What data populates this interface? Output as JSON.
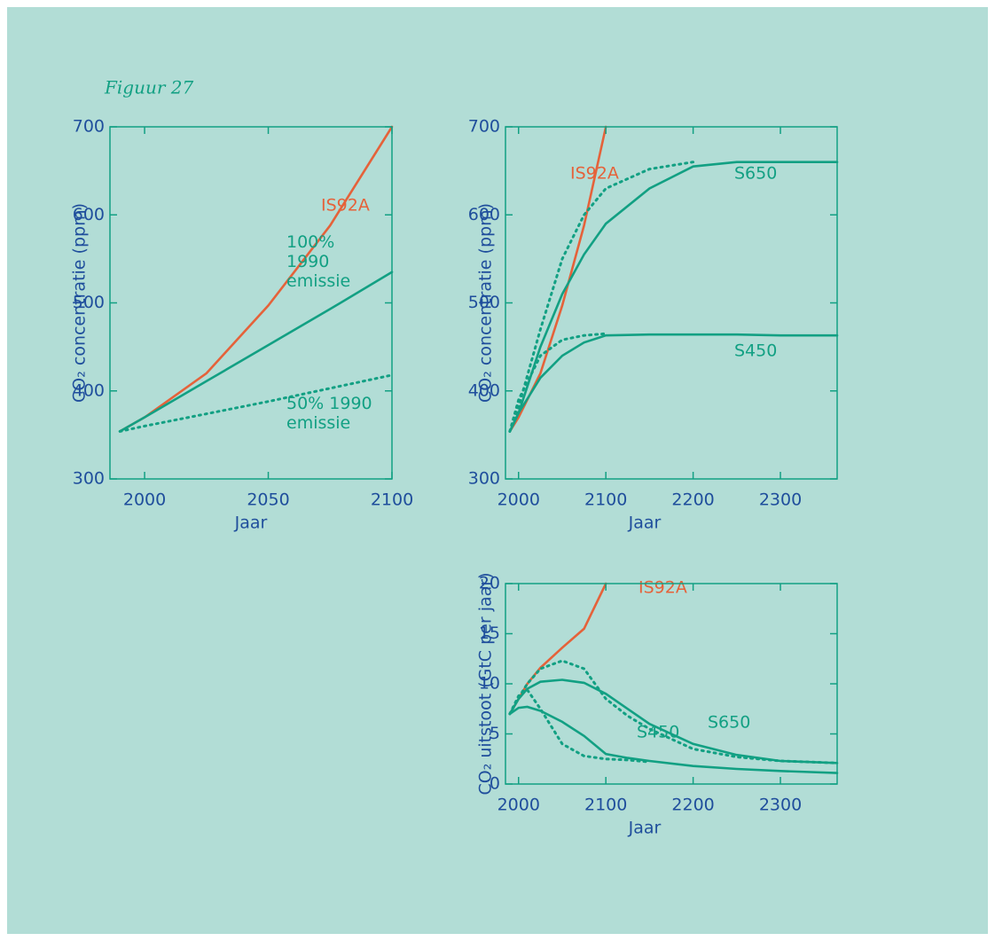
{
  "figure_label": "Figuur 27",
  "chart_data": [
    {
      "type": "line",
      "xlabel": "Jaar",
      "ylabel": "CO₂ concentratie (ppm)",
      "x": [
        1990,
        2000,
        2025,
        2050,
        2075,
        2100
      ],
      "xlim": [
        1986,
        2100
      ],
      "xticks": [
        2000,
        2050,
        2100
      ],
      "ylim": [
        300,
        700
      ],
      "yticks": [
        300,
        400,
        500,
        600,
        700
      ],
      "series": [
        {
          "name": "IS92A",
          "color": "#e5623a",
          "style": "solid",
          "values": [
            354,
            370,
            420,
            497,
            588,
            700
          ]
        },
        {
          "name": "100% 1990 emissie",
          "color": "#12a083",
          "style": "solid",
          "values": [
            354,
            370,
            411,
            452,
            493,
            535
          ]
        },
        {
          "name": "50% 1990 emissie",
          "color": "#12a083",
          "style": "dotted",
          "values": [
            354,
            360,
            374,
            388,
            403,
            418
          ]
        }
      ]
    },
    {
      "type": "line",
      "xlabel": "Jaar",
      "ylabel": "CO₂ concentratie (ppm)",
      "x": [
        1990,
        2000,
        2025,
        2050,
        2075,
        2100,
        2150,
        2200,
        2250,
        2300,
        2365
      ],
      "xlim": [
        1985,
        2365
      ],
      "xticks": [
        2000,
        2100,
        2200,
        2300
      ],
      "ylim": [
        300,
        700
      ],
      "yticks": [
        300,
        400,
        500,
        600,
        700
      ],
      "series": [
        {
          "name": "IS92A",
          "color": "#e5623a",
          "style": "solid",
          "values": [
            354,
            370,
            420,
            497,
            588,
            700,
            null,
            null,
            null,
            null,
            null
          ]
        },
        {
          "name": "S650",
          "color": "#12a083",
          "style": "solid",
          "values": [
            354,
            375,
            450,
            510,
            555,
            590,
            630,
            655,
            660,
            660,
            660
          ]
        },
        {
          "color": "#12a083",
          "style": "dotted",
          "values": [
            354,
            382,
            470,
            550,
            600,
            630,
            652,
            660,
            null,
            null,
            null
          ]
        },
        {
          "name": "S450",
          "color": "#12a083",
          "style": "solid",
          "values": [
            354,
            375,
            415,
            440,
            455,
            463,
            464,
            464,
            464,
            463,
            463
          ]
        },
        {
          "color": "#12a083",
          "style": "dotted",
          "values": [
            354,
            390,
            440,
            458,
            463,
            465,
            null,
            null,
            null,
            null,
            null
          ]
        }
      ]
    },
    {
      "type": "line",
      "xlabel": "Jaar",
      "ylabel": "CO₂ uitstoot (GtC per jaar)",
      "x": [
        1990,
        2000,
        2010,
        2025,
        2050,
        2075,
        2100,
        2125,
        2150,
        2200,
        2250,
        2300,
        2365
      ],
      "xlim": [
        1985,
        2365
      ],
      "xticks": [
        2000,
        2100,
        2200,
        2300
      ],
      "ylim": [
        0,
        20
      ],
      "yticks": [
        0,
        5,
        10,
        15,
        20
      ],
      "series": [
        {
          "name": "IS92A",
          "color": "#e5623a",
          "style": "solid",
          "values": [
            7,
            8.5,
            10,
            11.6,
            13.6,
            15.5,
            20,
            null,
            null,
            null,
            null,
            null,
            null
          ]
        },
        {
          "name": "S650",
          "color": "#12a083",
          "style": "solid",
          "values": [
            7,
            8.5,
            9.5,
            10.2,
            10.4,
            10.1,
            9,
            7.5,
            6,
            4,
            2.9,
            2.3,
            2.1
          ]
        },
        {
          "color": "#12a083",
          "style": "dotted",
          "values": [
            7,
            8.6,
            10,
            11.5,
            12.3,
            11.5,
            8.5,
            6.8,
            5.5,
            3.5,
            2.7,
            2.3,
            2.1
          ]
        },
        {
          "name": "S450",
          "color": "#12a083",
          "style": "solid",
          "values": [
            7,
            7.6,
            7.7,
            7.3,
            6.2,
            4.8,
            3,
            2.6,
            2.3,
            1.8,
            1.5,
            1.3,
            1.1
          ]
        },
        {
          "color": "#12a083",
          "style": "dotted",
          "values": [
            7,
            8.8,
            9.4,
            7.5,
            4,
            2.8,
            2.5,
            2.4,
            2.2,
            null,
            null,
            null,
            null
          ]
        }
      ]
    }
  ]
}
